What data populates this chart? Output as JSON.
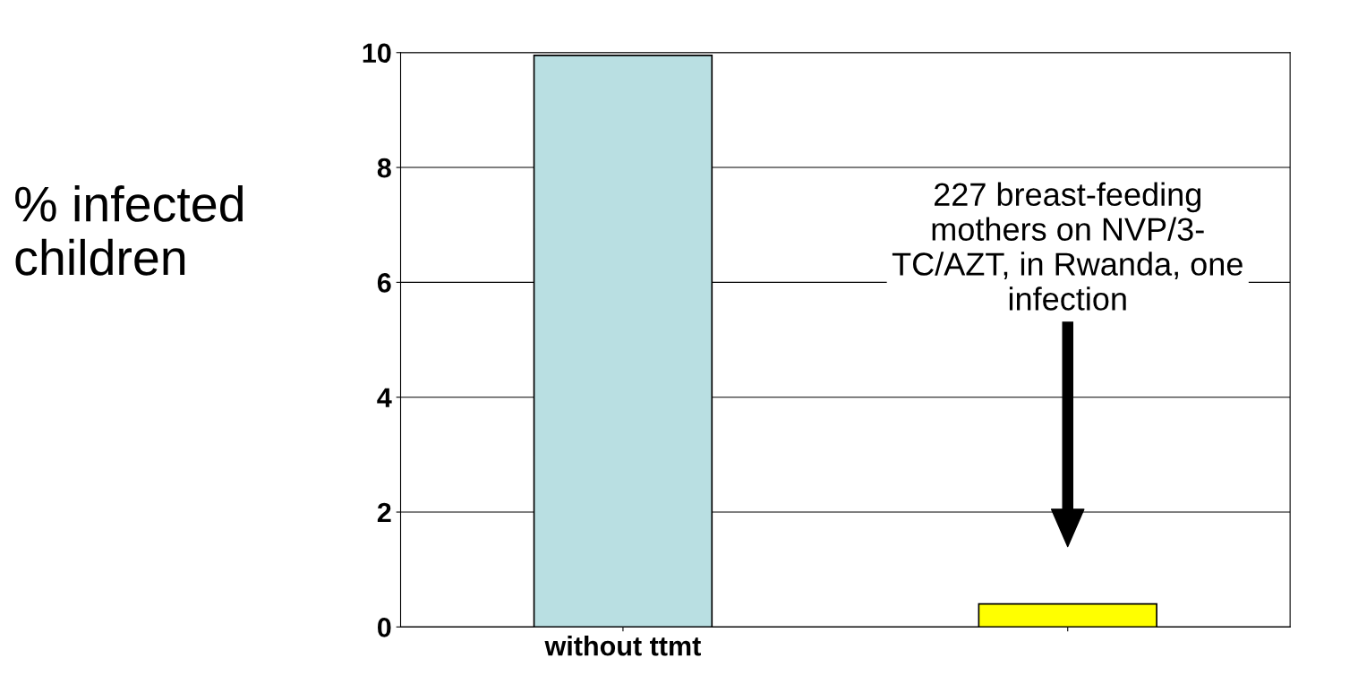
{
  "chart_data": {
    "type": "bar",
    "ylabel": "% infected\nchildren",
    "categories": [
      "without ttmt",
      null
    ],
    "values": [
      9.95,
      0.4
    ],
    "colors": [
      "#b9dfe2",
      "#ffff00"
    ],
    "ylim": [
      0,
      10
    ],
    "yticks": [
      0,
      2,
      4,
      6,
      8,
      10
    ],
    "grid": "y",
    "legend": false,
    "annotations": [
      "227 breast-feeding\nmothers on NVP/3-\nTC/AZT, in Rwanda, one\ninfection"
    ]
  }
}
